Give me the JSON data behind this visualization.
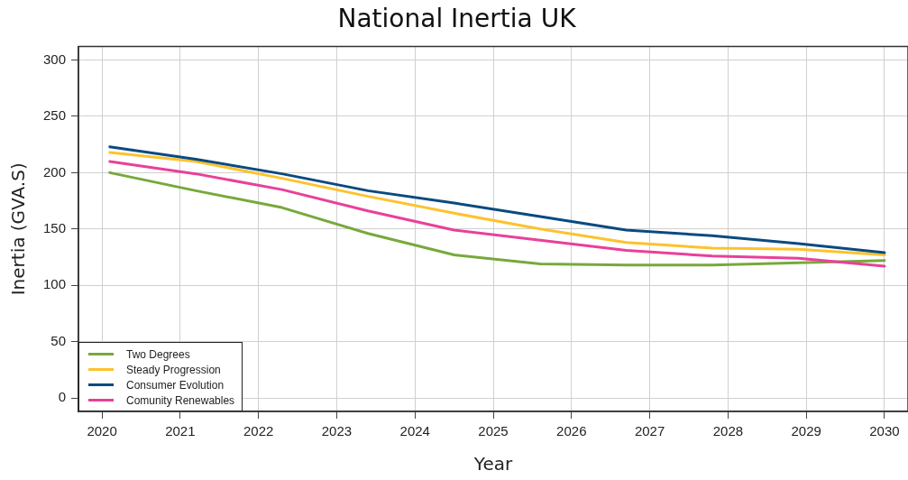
{
  "chart_data": {
    "type": "line",
    "title": "National Inertia UK",
    "xlabel": "Year",
    "ylabel": "Inertia (GVA.S)",
    "x": [
      2020.1,
      2021.2,
      2022.3,
      2023.4,
      2024.5,
      2025.6,
      2026.7,
      2027.8,
      2028.9,
      2030
    ],
    "series": [
      {
        "name": "Two Degrees",
        "color": "#77a93a",
        "values": [
          200,
          184,
          169,
          146,
          127,
          119,
          118,
          118,
          120,
          122
        ]
      },
      {
        "name": "Steady Progression",
        "color": "#fdc22d",
        "values": [
          218,
          210,
          195,
          179,
          164,
          150,
          138,
          133,
          132,
          127
        ]
      },
      {
        "name": "Consumer Evolution",
        "color": "#0b4a80",
        "values": [
          223,
          212,
          199,
          184,
          173,
          161,
          149,
          144,
          137,
          129
        ]
      },
      {
        "name": "Comunity Renewables",
        "color": "#e9409a",
        "values": [
          210,
          199,
          185,
          166,
          149,
          140,
          131,
          126,
          124,
          117
        ]
      }
    ],
    "xlim": [
      2019.7,
      2030.3
    ],
    "xticks": [
      2020,
      2021,
      2022,
      2023,
      2024,
      2025,
      2026,
      2027,
      2028,
      2029,
      2030
    ],
    "ylim": [
      -12,
      312
    ],
    "yticks": [
      0,
      50,
      100,
      150,
      200,
      250,
      300
    ],
    "grid": true,
    "legend": "bottom left",
    "marker": "none",
    "line_style": "solid"
  }
}
